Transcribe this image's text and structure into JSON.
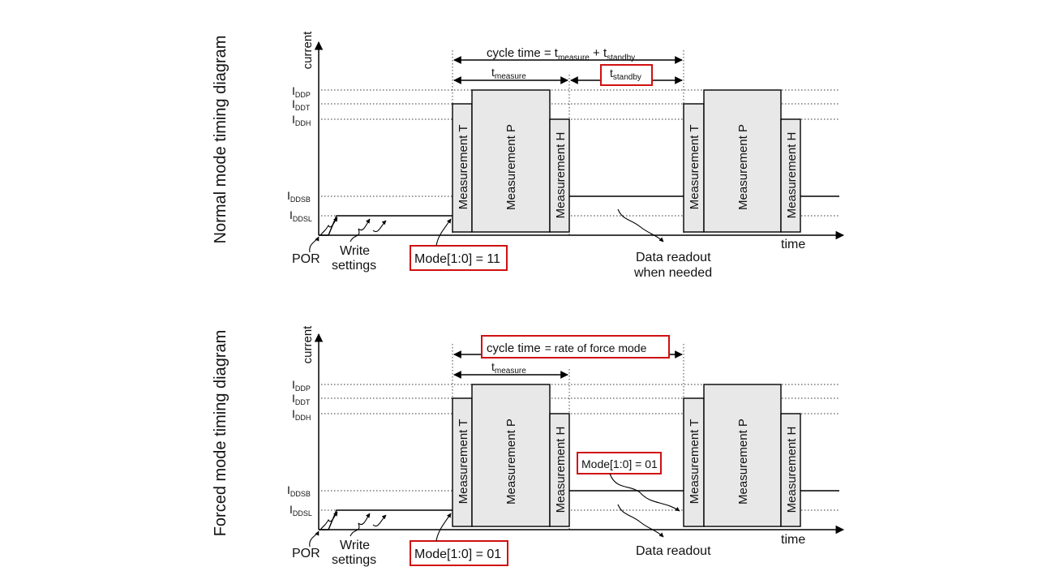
{
  "normal": {
    "title": "Normal mode timing diagram",
    "y_label": "current",
    "x_label": "time",
    "levels": [
      "DDP",
      "DDT",
      "DDH",
      "DDSB",
      "DDSL"
    ],
    "level_prefix": "I",
    "cycle_text": "cycle time = t",
    "cycle_sub1": "measure",
    "cycle_plus": " + t",
    "cycle_sub2": "standby",
    "tmeasure_t": "t",
    "tmeasure_sub": "measure",
    "tstandby_t": "t",
    "tstandby_sub": "standby",
    "meas_t": "Measurement T",
    "meas_p": "Measurement P",
    "meas_h": "Measurement H",
    "por": "POR",
    "write": "Write",
    "settings": "settings",
    "mode": "Mode[1:0] = 11",
    "readout_1": "Data readout",
    "readout_2": "when needed"
  },
  "forced": {
    "title": "Forced mode timing diagram",
    "y_label": "current",
    "x_label": "time",
    "levels": [
      "DDP",
      "DDT",
      "DDH",
      "DDSB",
      "DDSL"
    ],
    "level_prefix": "I",
    "cycle": "cycle time",
    "cycle_rest": "= rate of force mode",
    "tmeasure_t": "t",
    "tmeasure_sub": "measure",
    "meas_t": "Measurement T",
    "meas_p": "Measurement P",
    "meas_h": "Measurement H",
    "por": "POR",
    "write": "Write",
    "settings": "settings",
    "mode": "Mode[1:0] = 01",
    "mode_inner": "Mode[1:0] = 01",
    "readout": "Data readout"
  },
  "colors": {
    "highlight": "#d01010",
    "block_fill": "#e8e8e8"
  }
}
